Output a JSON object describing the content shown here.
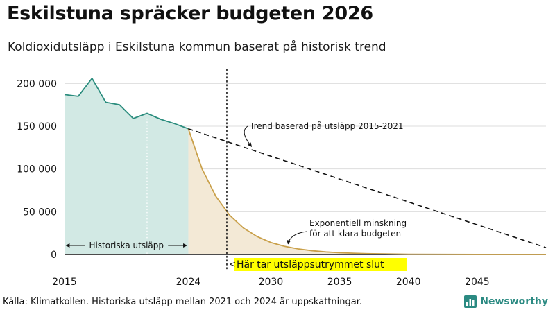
{
  "title": "Eskilstuna spräcker budgeten 2026",
  "subtitle": "Koldioxidutsläpp i Eskilstuna kommun baserat på historisk trend",
  "source": "Källa: Klimatkollen. Historiska utsläpp mellan 2021 och 2024 är uppskattningar.",
  "brand": {
    "name": "Newsworthy",
    "icon": "bar-chart-icon"
  },
  "colors": {
    "historic_line": "#2a8c7d",
    "historic_fill": "#d2e9e4",
    "decline_line": "#c9a04a",
    "decline_fill": "#f3e9d6",
    "highlight": "#ffff00",
    "text": "#111111"
  },
  "chart_data": {
    "type": "line",
    "xlim": [
      2015,
      2050
    ],
    "ylim": [
      0,
      210000
    ],
    "x_ticks": [
      2015,
      2024,
      2030,
      2035,
      2040,
      2045
    ],
    "x_tick_labels": [
      "2015",
      "2024",
      "2030",
      "2035",
      "2040",
      "2045"
    ],
    "y_ticks": [
      0,
      50000,
      100000,
      150000,
      200000
    ],
    "y_tick_labels": [
      "0",
      "50 000",
      "100 000",
      "150 000",
      "200 000"
    ],
    "series": [
      {
        "name": "Historiska utsläpp",
        "x": [
          2015,
          2016,
          2017,
          2018,
          2019,
          2020,
          2021,
          2022,
          2023,
          2024
        ],
        "values": [
          187000,
          185000,
          206000,
          178000,
          175000,
          159000,
          165000,
          158000,
          153000,
          147000
        ]
      },
      {
        "name": "Exponentiell minskning",
        "x": [
          2024,
          2025,
          2026,
          2027,
          2028,
          2029,
          2030,
          2031,
          2032,
          2033,
          2034,
          2035,
          2037,
          2040,
          2045,
          2050
        ],
        "values": [
          147000,
          100000,
          68000,
          46000,
          31000,
          21000,
          14000,
          9500,
          6500,
          4400,
          3000,
          2000,
          1000,
          300,
          40,
          5
        ]
      },
      {
        "name": "Trend",
        "x": [
          2024,
          2050
        ],
        "values": [
          147000,
          8000
        ]
      }
    ],
    "budget_end_year": 2026.8,
    "budget_end_label": "Här tar utsläppsutrymmet slut",
    "historic_range_label": "Historiska utsläpp",
    "trend_annotation": "Trend baserad på utsläpp 2015-2021",
    "decline_annotation": [
      "Exponentiell minskning",
      "för att klara budgeten"
    ]
  }
}
